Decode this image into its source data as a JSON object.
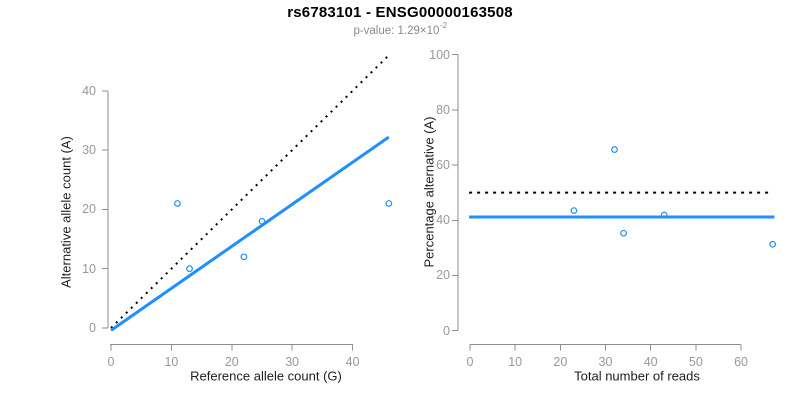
{
  "header": {
    "title": "rs6783101 - ENSG00000163508",
    "pvalue_text": "p-value: 1.29×10",
    "pvalue_exponent": "-2"
  },
  "colors": {
    "accent_blue": "#1E90FF",
    "line_black": "#000000",
    "axis_line_gray": "#8e8e8e",
    "tick_label_gray": "#999999",
    "subtitle_gray": "#8a8a8a",
    "axis_title_dark": "#1f1f1f"
  },
  "chart_data": [
    {
      "type": "scatter",
      "panel": "left",
      "title": "",
      "xlabel": "Reference allele count (G)",
      "ylabel": "Alternative allele count (A)",
      "xticks": [
        0,
        10,
        20,
        30,
        40
      ],
      "yticks": [
        0,
        10,
        20,
        30,
        40
      ],
      "xlim": [
        0,
        46
      ],
      "ylim": [
        0,
        46
      ],
      "grid": false,
      "legend": "none",
      "points": [
        [
          11,
          21
        ],
        [
          13,
          10
        ],
        [
          22,
          12
        ],
        [
          25,
          18
        ],
        [
          46,
          21
        ]
      ],
      "lines": [
        {
          "name": "identity-line",
          "style": "dotted",
          "color": "#000000",
          "width": 2,
          "dash": "2 5",
          "from": [
            0,
            0
          ],
          "to": [
            45.8,
            45.8
          ]
        },
        {
          "name": "regression-line",
          "style": "solid",
          "color": "#1E90FF",
          "width": 3,
          "from": [
            0,
            -0.4
          ],
          "to": [
            46,
            32.2
          ]
        }
      ]
    },
    {
      "type": "scatter",
      "panel": "right",
      "title": "",
      "xlabel": "Total number of reads",
      "ylabel": "Percentage alternative (A)",
      "xticks": [
        0,
        10,
        20,
        30,
        40,
        50,
        60
      ],
      "yticks": [
        0,
        20,
        40,
        60,
        80,
        100
      ],
      "xlim": [
        0,
        67
      ],
      "ylim": [
        0,
        100
      ],
      "grid": false,
      "legend": "none",
      "points": [
        [
          23,
          43.5
        ],
        [
          32,
          65.6
        ],
        [
          34,
          35.3
        ],
        [
          43,
          41.9
        ],
        [
          67,
          31.3
        ]
      ],
      "lines": [
        {
          "name": "fifty-percent-line",
          "style": "dotted",
          "color": "#000000",
          "width": 2,
          "dash": "3 5",
          "from": [
            -0.2,
            50
          ],
          "to": [
            66,
            50
          ]
        },
        {
          "name": "mean-percentage-line",
          "style": "solid",
          "color": "#1E90FF",
          "width": 3,
          "from": [
            -0.2,
            41.2
          ],
          "to": [
            67.4,
            41.2
          ]
        }
      ]
    }
  ]
}
